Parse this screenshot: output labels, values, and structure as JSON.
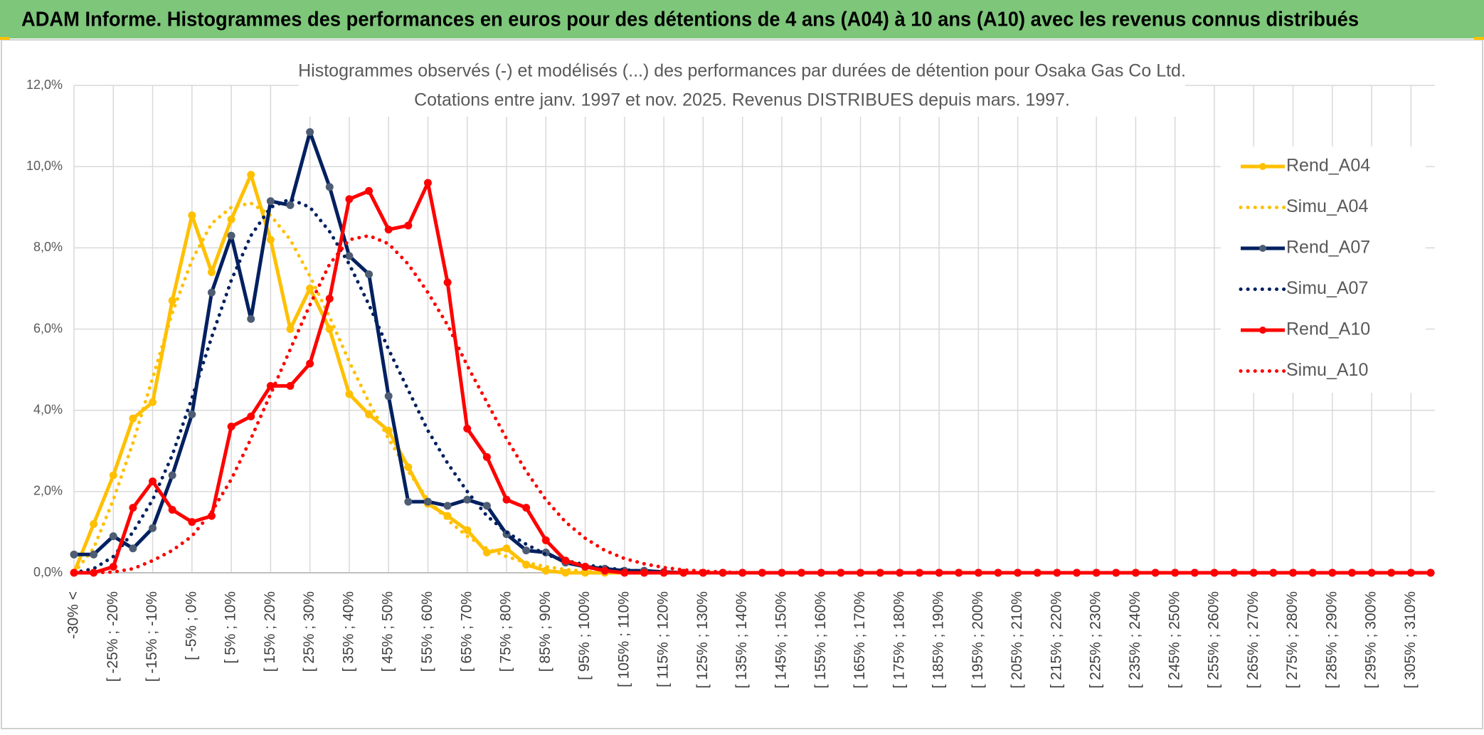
{
  "header": {
    "title": "ADAM Informe. Histogrammes des performances en euros pour des détentions de 4 ans (A04) à 10 ans (A10) avec les revenus connus distribués"
  },
  "chart_data": {
    "type": "line",
    "title": "Histogrammes observés (-) et modélisés (...) des performances par durées de détention pour Osaka Gas Co Ltd.",
    "subtitle": "Cotations entre janv. 1997 et nov. 2025. Revenus DISTRIBUES depuis mars. 1997.",
    "categories": [
      "-30% <",
      null,
      "[ -25% ; -20%",
      null,
      "[ -15% ; -10%",
      null,
      "[ -5% ; 0%",
      null,
      "[ 5% ; 10%",
      null,
      "[ 15% ; 20%",
      null,
      "[ 25% ; 30%",
      null,
      "[ 35% ; 40%",
      null,
      "[ 45% ; 50%",
      null,
      "[ 55% ; 60%",
      null,
      "[ 65% ; 70%",
      null,
      "[ 75% ; 80%",
      null,
      "[ 85% ; 90%",
      null,
      "[ 95% ; 100%",
      null,
      "[ 105% ; 110%",
      null,
      "[ 115% ; 120%",
      null,
      "[ 125% ; 130%",
      null,
      "[ 135% ; 140%",
      null,
      "[ 145% ; 150%",
      null,
      "[ 155% ; 160%",
      null,
      "[ 165% ; 170%",
      null,
      "[ 175% ; 180%",
      null,
      "[ 185% ; 190%",
      null,
      "[ 195% ; 200%",
      null,
      "[ 205% ; 210%",
      null,
      "[ 215% ; 220%",
      null,
      "[ 225% ; 230%",
      null,
      "[ 235% ; 240%",
      null,
      "[ 245% ; 250%",
      null,
      "[ 255% ; 260%",
      null,
      "[ 265% ; 270%",
      null,
      "[ 275% ; 280%",
      null,
      "[ 285% ; 290%",
      null,
      "[ 295% ; 300%",
      null,
      "[ 305% ; 310%",
      null
    ],
    "series": [
      {
        "name": "Rend_A04",
        "color": "#FFC000",
        "marker_color": "#FFC000",
        "dash": "solid",
        "markers": true,
        "values": [
          0,
          1.2,
          2.4,
          3.8,
          4.2,
          6.7,
          8.8,
          7.4,
          8.7,
          9.8,
          8.2,
          6.0,
          7.0,
          6.0,
          4.4,
          3.9,
          3.5,
          2.6,
          1.7,
          1.4,
          1.05,
          0.5,
          0.6,
          0.2,
          0.05,
          0,
          0,
          0,
          0,
          0,
          0,
          0,
          0,
          0,
          0,
          0,
          0,
          0,
          0,
          0,
          0,
          0,
          0,
          0,
          0,
          0,
          0,
          0,
          0,
          0,
          0,
          0,
          0,
          0,
          0,
          0,
          0,
          0,
          0,
          0,
          0,
          0,
          0,
          0,
          0,
          0,
          0,
          0,
          0,
          0
        ]
      },
      {
        "name": "Simu_A04",
        "color": "#FFC000",
        "marker_color": "#FFC000",
        "dash": "dotted",
        "markers": false,
        "values": [
          0,
          0.6,
          1.8,
          3.2,
          4.8,
          6.4,
          7.7,
          8.6,
          9.0,
          9.1,
          8.8,
          8.2,
          7.3,
          6.3,
          5.2,
          4.2,
          3.3,
          2.5,
          1.8,
          1.3,
          0.9,
          0.6,
          0.4,
          0.25,
          0.15,
          0.08,
          0.04,
          0,
          0,
          0,
          0,
          0,
          0,
          0,
          0,
          0,
          0,
          0,
          0,
          0,
          0,
          0,
          0,
          0,
          0,
          0,
          0,
          0,
          0,
          0,
          0,
          0,
          0,
          0,
          0,
          0,
          0,
          0,
          0,
          0,
          0,
          0,
          0,
          0,
          0,
          0,
          0,
          0,
          0,
          0
        ]
      },
      {
        "name": "Rend_A07",
        "color": "#002060",
        "marker_color": "#4E5D73",
        "dash": "solid",
        "markers": true,
        "values": [
          0.45,
          0.45,
          0.9,
          0.6,
          1.1,
          2.4,
          3.9,
          6.9,
          8.3,
          6.25,
          9.15,
          9.05,
          10.85,
          9.5,
          7.8,
          7.35,
          4.35,
          1.75,
          1.75,
          1.65,
          1.8,
          1.65,
          0.95,
          0.55,
          0.5,
          0.25,
          0.15,
          0.1,
          0.05,
          0.05,
          0.02,
          0,
          0,
          0,
          0,
          0,
          0,
          0,
          0,
          0,
          0,
          0,
          0,
          0,
          0,
          0,
          0,
          0,
          0,
          0,
          0,
          0,
          0,
          0,
          0,
          0,
          0,
          0,
          0,
          0,
          0,
          0,
          0,
          0,
          0,
          0,
          0,
          0,
          0,
          0
        ]
      },
      {
        "name": "Simu_A07",
        "color": "#002060",
        "marker_color": "#002060",
        "dash": "dotted",
        "markers": false,
        "values": [
          0,
          0.1,
          0.4,
          1.0,
          1.8,
          2.9,
          4.3,
          5.8,
          7.2,
          8.3,
          9.0,
          9.2,
          9.0,
          8.4,
          7.6,
          6.6,
          5.5,
          4.5,
          3.5,
          2.7,
          2.0,
          1.4,
          1.0,
          0.7,
          0.45,
          0.3,
          0.2,
          0.12,
          0.07,
          0.04,
          0.02,
          0,
          0,
          0,
          0,
          0,
          0,
          0,
          0,
          0,
          0,
          0,
          0,
          0,
          0,
          0,
          0,
          0,
          0,
          0,
          0,
          0,
          0,
          0,
          0,
          0,
          0,
          0,
          0,
          0,
          0,
          0,
          0,
          0,
          0,
          0,
          0,
          0,
          0,
          0
        ]
      },
      {
        "name": "Rend_A10",
        "color": "#FF0000",
        "marker_color": "#FF0000",
        "dash": "solid",
        "markers": true,
        "values": [
          0,
          0,
          0.15,
          1.6,
          2.25,
          1.55,
          1.25,
          1.4,
          3.6,
          3.85,
          4.6,
          4.6,
          5.15,
          6.75,
          9.2,
          9.4,
          8.45,
          8.55,
          9.6,
          7.15,
          3.55,
          2.85,
          1.8,
          1.6,
          0.8,
          0.3,
          0.15,
          0.05,
          0,
          0,
          0,
          0,
          0,
          0,
          0,
          0,
          0,
          0,
          0,
          0,
          0,
          0,
          0,
          0,
          0,
          0,
          0,
          0,
          0,
          0,
          0,
          0,
          0,
          0,
          0,
          0,
          0,
          0,
          0,
          0,
          0,
          0,
          0,
          0,
          0,
          0,
          0,
          0,
          0,
          0
        ]
      },
      {
        "name": "Simu_A10",
        "color": "#FF0000",
        "marker_color": "#FF0000",
        "dash": "dotted",
        "markers": false,
        "values": [
          0,
          0,
          0.02,
          0.1,
          0.3,
          0.55,
          0.9,
          1.5,
          2.3,
          3.3,
          4.4,
          5.5,
          6.6,
          7.6,
          8.2,
          8.3,
          8.1,
          7.6,
          6.9,
          6.1,
          5.1,
          4.2,
          3.3,
          2.5,
          1.8,
          1.25,
          0.85,
          0.55,
          0.35,
          0.22,
          0.13,
          0.07,
          0.04,
          0.02,
          0,
          0,
          0,
          0,
          0,
          0,
          0,
          0,
          0,
          0,
          0,
          0,
          0,
          0,
          0,
          0,
          0,
          0,
          0,
          0,
          0,
          0,
          0,
          0,
          0,
          0,
          0,
          0,
          0,
          0,
          0,
          0,
          0,
          0,
          0,
          0
        ]
      }
    ],
    "ylim": [
      0,
      12
    ],
    "yticks": [
      {
        "value": 0,
        "label": "0,0%"
      },
      {
        "value": 2,
        "label": "2,0%"
      },
      {
        "value": 4,
        "label": "4,0%"
      },
      {
        "value": 6,
        "label": "6,0%"
      },
      {
        "value": 8,
        "label": "8,0%"
      },
      {
        "value": 10,
        "label": "10,0%"
      },
      {
        "value": 12,
        "label": "12,0%"
      }
    ],
    "grid": true,
    "legend": "right"
  }
}
